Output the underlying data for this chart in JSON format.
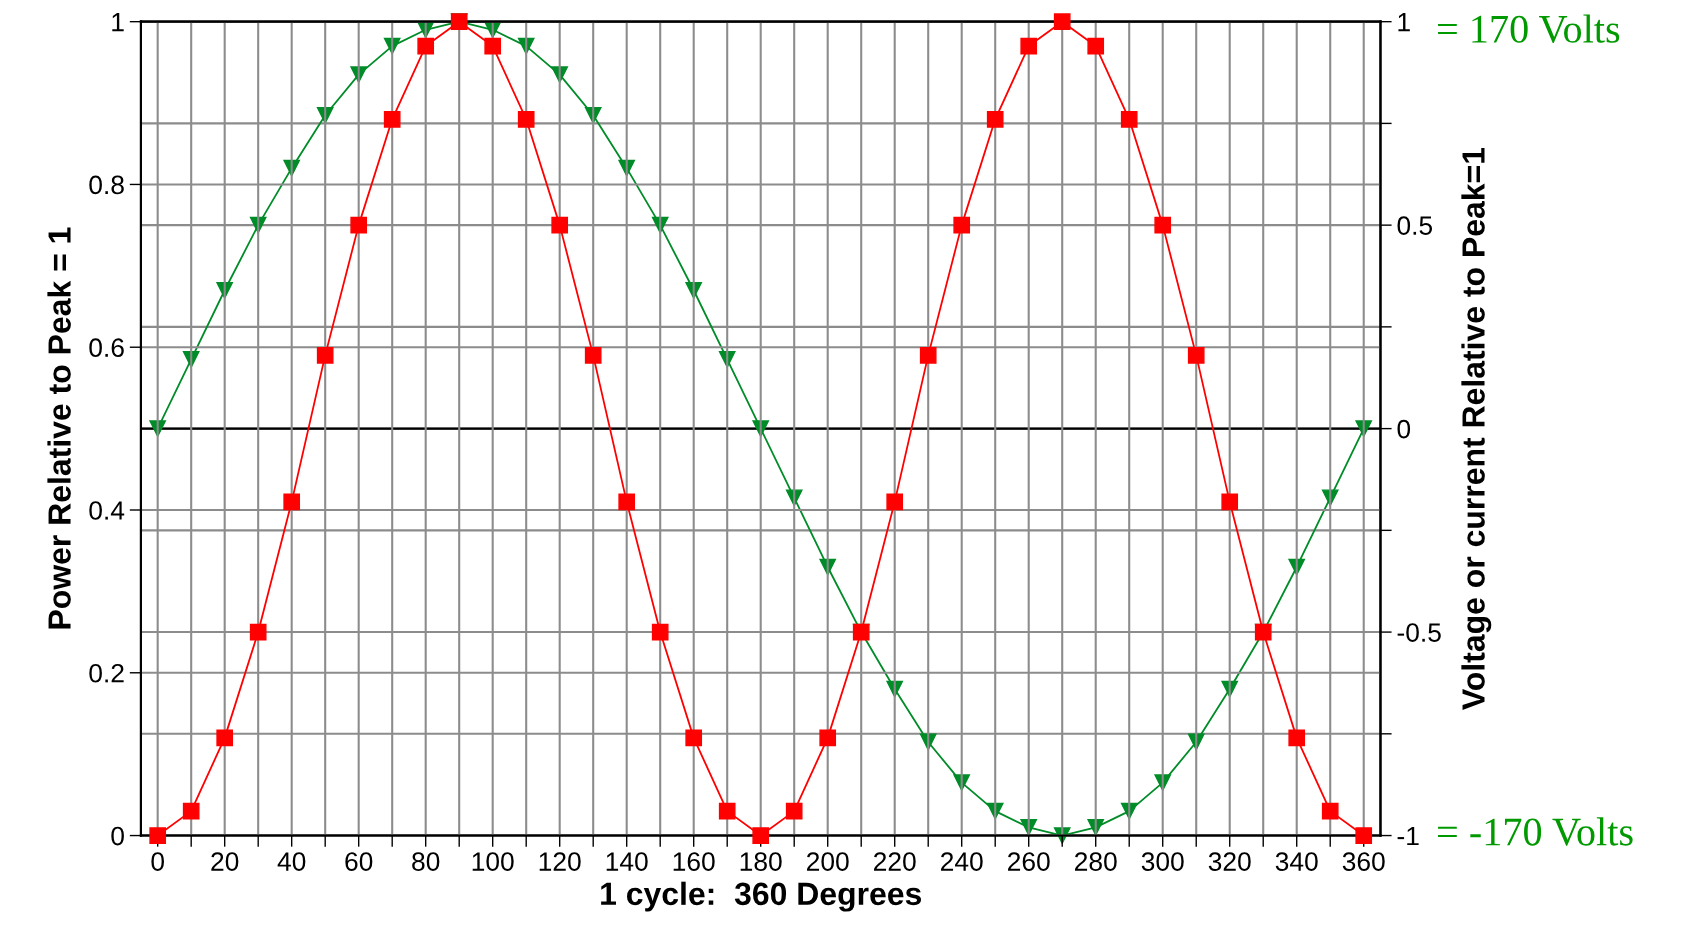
{
  "chart_data": {
    "type": "line",
    "xlabel": "1 cycle:  360 Degrees",
    "ylabel": "Power Relative to Peak = 1",
    "y2label": "Voltage or current Relative to Peak=1",
    "x": [
      0,
      10,
      20,
      30,
      40,
      50,
      60,
      70,
      80,
      90,
      100,
      110,
      120,
      130,
      140,
      150,
      160,
      170,
      180,
      190,
      200,
      210,
      220,
      230,
      240,
      250,
      260,
      270,
      280,
      290,
      300,
      310,
      320,
      330,
      340,
      350,
      360
    ],
    "series": [
      {
        "name": null,
        "color": "#ff0000",
        "marker": "square",
        "values": [
          0,
          0.03,
          0.12,
          0.25,
          0.41,
          0.59,
          0.75,
          0.88,
          0.97,
          1,
          0.97,
          0.88,
          0.75,
          0.59,
          0.41,
          0.25,
          0.12,
          0.03,
          0,
          0.03,
          0.12,
          0.25,
          0.41,
          0.59,
          0.75,
          0.88,
          0.97,
          1,
          0.97,
          0.88,
          0.75,
          0.59,
          0.41,
          0.25,
          0.12,
          0.03,
          0
        ]
      },
      {
        "name": null,
        "color": "#008c28",
        "marker": "triangle",
        "axis": "y2",
        "values": [
          0,
          0.17,
          0.34,
          0.5,
          0.64,
          0.77,
          0.87,
          0.94,
          0.98,
          1,
          0.98,
          0.94,
          0.87,
          0.77,
          0.64,
          0.5,
          0.34,
          0.17,
          0,
          -0.17,
          -0.34,
          -0.5,
          -0.64,
          -0.77,
          -0.87,
          -0.94,
          -0.98,
          -1,
          -0.98,
          -0.94,
          -0.87,
          -0.77,
          -0.64,
          -0.5,
          -0.34,
          -0.17,
          0
        ]
      }
    ],
    "xlim": [
      -5,
      365
    ],
    "xticks": [
      0,
      {
        "value": 10,
        "label": null
      },
      20,
      {
        "value": 30,
        "label": null
      },
      40,
      {
        "value": 50,
        "label": null
      },
      60,
      {
        "value": 70,
        "label": null
      },
      80,
      {
        "value": 90,
        "label": null
      },
      100,
      {
        "value": 110,
        "label": null
      },
      120,
      {
        "value": 130,
        "label": null
      },
      140,
      {
        "value": 150,
        "label": null
      },
      160,
      {
        "value": 170,
        "label": null
      },
      180,
      {
        "value": 190,
        "label": null
      },
      200,
      {
        "value": 210,
        "label": null
      },
      220,
      {
        "value": 230,
        "label": null
      },
      240,
      {
        "value": 250,
        "label": null
      },
      260,
      {
        "value": 270,
        "label": null
      },
      280,
      {
        "value": 290,
        "label": null
      },
      300,
      {
        "value": 310,
        "label": null
      },
      320,
      {
        "value": 330,
        "label": null
      },
      340,
      {
        "value": 350,
        "label": null
      },
      360
    ],
    "ylim": [
      0,
      1
    ],
    "yticks": [
      0,
      0.2,
      0.4,
      0.6,
      0.8,
      1
    ],
    "y2lim": [
      -1,
      1
    ],
    "y2ticks": [
      -1,
      {
        "value": -0.75,
        "label": null
      },
      -0.5,
      {
        "value": -0.25,
        "label": null
      },
      0,
      {
        "value": 0.25,
        "label": null
      },
      0.5,
      {
        "value": 0.75,
        "label": null
      },
      1
    ],
    "ref_lines": [
      {
        "axis": "y2",
        "value": 0,
        "label": null,
        "color": "#000000"
      }
    ],
    "annotations": [
      "= 170 Volts",
      "= -170 Volts"
    ],
    "grid": true,
    "line_style": "solid"
  }
}
